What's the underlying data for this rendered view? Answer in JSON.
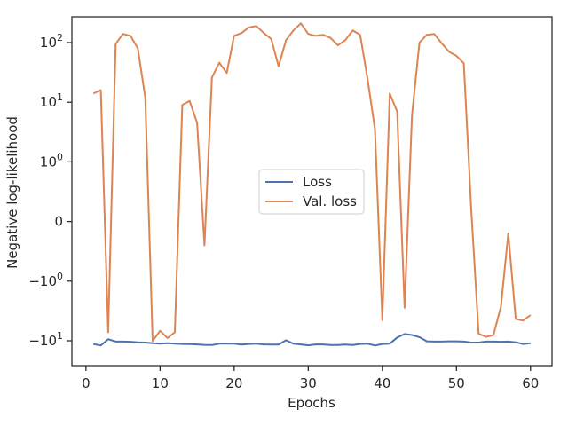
{
  "chart_data": {
    "type": "line",
    "title": "",
    "xlabel": "Epochs",
    "ylabel": "Negative log-likelihood",
    "yscale": "symlog",
    "xlim": [
      -1.9,
      62.9
    ],
    "x_ticks": [
      0,
      10,
      20,
      30,
      40,
      50,
      60
    ],
    "y_ticks": [
      {
        "value": 100,
        "label": "10",
        "exp": "2"
      },
      {
        "value": 10,
        "label": "10",
        "exp": "1"
      },
      {
        "value": 1,
        "label": "10",
        "exp": "0"
      },
      {
        "value": 0,
        "label": "0",
        "exp": ""
      },
      {
        "value": -1,
        "label": "−10",
        "exp": "0"
      },
      {
        "value": -10,
        "label": "−10",
        "exp": "1"
      }
    ],
    "legend": {
      "position": "center",
      "entries": [
        "Loss",
        "Val. loss"
      ]
    },
    "grid": false,
    "series": [
      {
        "name": "Loss",
        "color": "#4c72b0",
        "x": [
          1,
          2,
          3,
          4,
          5,
          6,
          7,
          8,
          9,
          10,
          11,
          12,
          13,
          14,
          15,
          16,
          17,
          18,
          19,
          20,
          21,
          22,
          23,
          24,
          25,
          26,
          27,
          28,
          29,
          30,
          31,
          32,
          33,
          34,
          35,
          36,
          37,
          38,
          39,
          40,
          41,
          42,
          43,
          44,
          45,
          46,
          47,
          48,
          49,
          50,
          51,
          52,
          53,
          54,
          55,
          56,
          57,
          58,
          59,
          60
        ],
        "y": [
          -11.3,
          -12.0,
          -9.4,
          -10.3,
          -10.3,
          -10.4,
          -10.6,
          -10.7,
          -11.0,
          -11.2,
          -11.0,
          -11.2,
          -11.3,
          -11.4,
          -11.5,
          -11.7,
          -11.8,
          -11.2,
          -11.2,
          -11.2,
          -11.6,
          -11.3,
          -11.2,
          -11.5,
          -11.6,
          -11.6,
          -9.8,
          -11.2,
          -11.5,
          -11.9,
          -11.5,
          -11.5,
          -11.8,
          -11.8,
          -11.6,
          -11.8,
          -11.3,
          -11.2,
          -12.0,
          -11.3,
          -11.2,
          -8.8,
          -7.7,
          -8.0,
          -8.7,
          -10.2,
          -10.3,
          -10.3,
          -10.2,
          -10.2,
          -10.3,
          -10.7,
          -10.7,
          -10.3,
          -10.3,
          -10.4,
          -10.3,
          -10.6,
          -11.3,
          -11.0
        ]
      },
      {
        "name": "Val. loss",
        "color": "#dd8452",
        "x": [
          1,
          2,
          3,
          4,
          5,
          6,
          7,
          8,
          9,
          10,
          11,
          12,
          13,
          14,
          15,
          16,
          17,
          18,
          19,
          20,
          21,
          22,
          23,
          24,
          25,
          26,
          27,
          28,
          29,
          30,
          31,
          32,
          33,
          34,
          35,
          36,
          37,
          38,
          39,
          40,
          41,
          42,
          43,
          44,
          45,
          46,
          47,
          48,
          49,
          50,
          51,
          52,
          53,
          54,
          55,
          56,
          57,
          58,
          59,
          60
        ],
        "y": [
          14,
          16,
          -7.2,
          95,
          140,
          130,
          80,
          12,
          -10.1,
          -6.8,
          -9.0,
          -7.2,
          9,
          10.5,
          4.5,
          -0.4,
          26,
          46,
          31,
          130,
          145,
          180,
          190,
          145,
          115,
          40,
          110,
          160,
          210,
          140,
          130,
          135,
          120,
          90,
          110,
          160,
          135,
          25,
          3.5,
          -4.5,
          14,
          7,
          -2.8,
          6,
          100,
          135,
          140,
          98,
          70,
          60,
          45,
          0.2,
          -7.6,
          -8.6,
          -8.0,
          -2.7,
          -0.2,
          -4.3,
          -4.6,
          -3.7
        ]
      }
    ]
  }
}
